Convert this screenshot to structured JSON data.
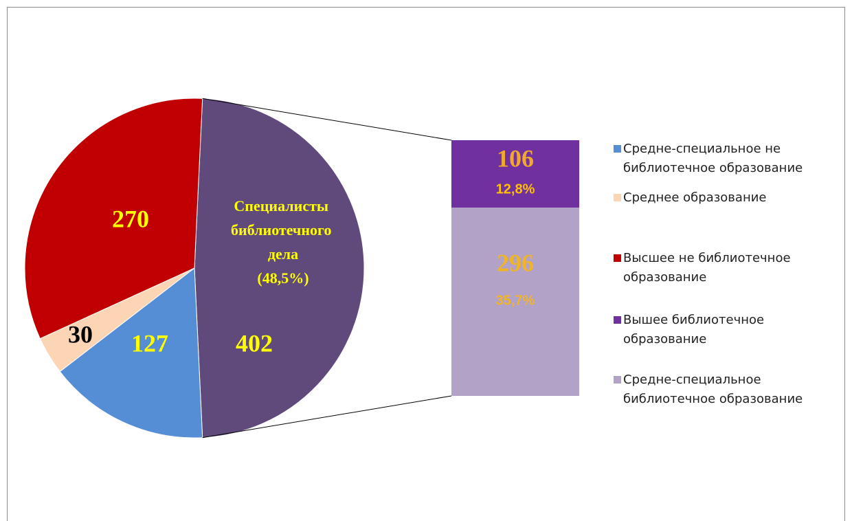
{
  "chart_data": {
    "type": "pie",
    "categories": [
      "Средне-специальное не библиотечное образование",
      "Среднее образование",
      "Высшее не библиотечное образование",
      "Вышее библиотечное образование",
      "Средне-специальное библиотечное образование"
    ],
    "values": [
      127,
      30,
      270,
      106,
      296
    ],
    "colors": [
      "#558ed5",
      "#fcd5b5",
      "#c00000",
      "#7030a0",
      "#b3a2c7"
    ],
    "shares": [
      null,
      null,
      null,
      12.8,
      35.7
    ],
    "share_labels": [
      null,
      null,
      null,
      "12,8%",
      "35,7%"
    ],
    "group": {
      "label": "Специалисты библиотечного дела",
      "value": 402,
      "share": 48.5,
      "share_label": "(48,5%)",
      "color": "#604a7b"
    },
    "legend": "right"
  }
}
